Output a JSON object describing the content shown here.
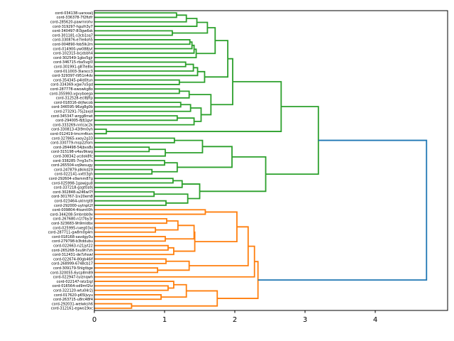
{
  "figure": {
    "kind": "matplotlib-dendrogram-window"
  },
  "colors": {
    "green_cluster": "#2ca02c",
    "orange_cluster": "#ff7f0e",
    "root_link": "#1f77b4",
    "axis": "#000000",
    "background": "#ffffff"
  },
  "chart_data": {
    "type": "dendrogram",
    "orientation": "right",
    "title": "",
    "xlabel": "",
    "ylabel": "",
    "x_ticks": [
      0,
      1,
      2,
      3,
      4
    ],
    "x_max": 5.03,
    "grid": false,
    "legend": "none",
    "leaves": [
      "cord-034138-uarxxalj",
      "cord-336378-7f2fizfr",
      "cord-285620-pawrnrohv",
      "cord-319297-hgulh3y7",
      "cord-340497-8l3gw6sk",
      "cord-301181-s3cb1sq7",
      "cord-330876-e7le4oh5",
      "cord-004890-fob5lk2m",
      "cord-014900-yw088jvt",
      "cord-102315-bcjdsbh4",
      "cord-302549-1gbx5gjr",
      "cord-346715-rba5vgl0",
      "cord-301991-g87le8ix",
      "cord-011003-3larxcc3",
      "cord-329397-t951n4dv",
      "cord-354345-p4ld0tun",
      "cord-334369-xgw7o5gd",
      "cord-287778-ewowkg8o",
      "cord-355993-vgvyboega",
      "cord-312528-ecl8jftp",
      "cord-018316-drjfwcob",
      "cord-346595-96zg8g0b",
      "cord-273291-75j2axjd",
      "cord-345347-wrgg8met",
      "cord-294005-8jfj1gvr",
      "cord-333269-nntcac2k",
      "cord-330813-43l9m0yh",
      "cord-012419-tmcm4kxn",
      "cord-327865-xxoy2g33",
      "cord-330779-msp2zfom",
      "cord-284498-54jbvs8s",
      "cord-315198-v4av9kwg",
      "cord-308342-ycdok8fc",
      "cord-338285-7rrg3o7n",
      "cord-265504-vq9wsugy",
      "cord-247879-jdkikd29",
      "cord-022141-vxttl3gh",
      "cord-292604-x9amm87g",
      "cord-025998-1gawjgu8",
      "cord-337218-gsgt0a9j",
      "cord-302848-a246wl7f",
      "cord-301767-1iv20em8",
      "cord-023464-uklnrgt8",
      "cord-292000-uytnpt2f",
      "cord-009804-4tozntl0h",
      "cord-344208-5mbnbb9x",
      "cord-267680-n1t7by3r",
      "cord-323683-9h9mldbx",
      "cord-025995-nxeg03xj",
      "cord-287711-gw8m0g4m",
      "cord-018168-savdgy0u",
      "cord-279798-b3tddubu",
      "cord-022663-n21jyt22",
      "cord-265268-5xu9h7zh",
      "cord-312431-de7zhswl",
      "cord-022674-80gb46lf",
      "cord-268999-6748cb17",
      "cord-309179-5hlgtbge",
      "cord-320055-6ycp8m89",
      "cord-022947-tulznqwh",
      "cord-022147-istz1igl",
      "cord-016564-od9mf2tz",
      "cord-322120-wtu04r2j",
      "cord-017620-p65ljvyu",
      "cord-263715-u8rc48f4",
      "cord-292031-weiwksh6",
      "cord-312161-egwo19oc"
    ],
    "root": {
      "h": 4.73,
      "color": "#1f77b4"
    },
    "clusters": [
      {
        "name": "green-cluster",
        "color": "#2ca02c",
        "tree": [
          3.19,
          [
            2.66,
            [
              1.97,
              [
                1.9,
                [
                  1.72,
                  [
                    1.61,
                    [
                      1.46,
                      [
                        1.31,
                        [
                          1.17,
                          0,
                          1
                        ],
                        2
                      ],
                      3
                    ],
                    [
                      1.11,
                      4,
                      5
                    ]
                  ],
                  [
                    1.45,
                    [
                      1.42,
                      [
                        1.39,
                        [
                          1.36,
                          6,
                          7
                        ],
                        8
                      ],
                      9
                    ],
                    10
                  ]
                ],
                [
                  1.57,
                  [
                    1.47,
                    [
                      1.41,
                      [
                        1.3,
                        11,
                        12
                      ],
                      13
                    ],
                    14
                  ],
                  [
                    1.21,
                    15,
                    16
                  ]
                ]
              ],
              [
                1.66,
                [
                  1.35,
                  [
                    1.21,
                    17,
                    18
                  ],
                  19
                ],
                [
                  1.52,
                  [
                    1.37,
                    [
                      1.23,
                      20,
                      21
                    ],
                    22
                  ],
                  [
                    1.42,
                    [
                      1.18,
                      23,
                      24
                    ],
                    25
                  ]
                ]
              ]
            ],
            [
              0.17,
              26,
              27
            ]
          ],
          [
            2.44,
            [
              1.96,
              [
                1.54,
                [
                  1.14,
                  28,
                  29
                ],
                [
                  1.01,
                  [
                    0.78,
                    30,
                    31
                  ],
                  32
                ]
              ],
              [
                1.18,
                [
                  1.0,
                  33,
                  34
                ],
                [
                  0.82,
                  35,
                  36
                ]
              ]
            ],
            [
              1.5,
              [
                1.25,
                [
                  1.12,
                  37,
                  38
                ],
                39
              ],
              [
                1.33,
                [
                  0.85,
                  40,
                  41
                ],
                [
                  1.02,
                  42,
                  43
                ]
              ]
            ]
          ]
        ]
      },
      {
        "name": "orange-cluster",
        "color": "#ff7f0e",
        "tree": [
          2.33,
          [
            2.28,
            [
              2.19,
              [
                2.03,
                [
                  1.58,
                  44,
                  45
                ],
                [
                  1.43,
                  [
                    1.42,
                    [
                      1.19,
                      [
                        1.03,
                        46,
                        47
                      ],
                      [
                        0.87,
                        48,
                        49
                      ]
                    ],
                    [
                      1.01,
                      50,
                      51
                    ]
                  ],
                  [
                    1.13,
                    [
                      1.05,
                      52,
                      53
                    ],
                    54
                  ]
                ]
              ],
              [
                1.35,
                [
                  1.02,
                  55,
                  56
                ],
                [
                  0.9,
                  57,
                  58
                ]
              ]
            ],
            59
          ],
          [
            1.75,
            [
              1.31,
              [
                1.13,
                60,
                [
                  1.05,
                  61,
                  62
                ]
              ],
              [
                0.95,
                63,
                64
              ]
            ],
            [
              0.53,
              65,
              66
            ]
          ]
        ]
      }
    ]
  }
}
